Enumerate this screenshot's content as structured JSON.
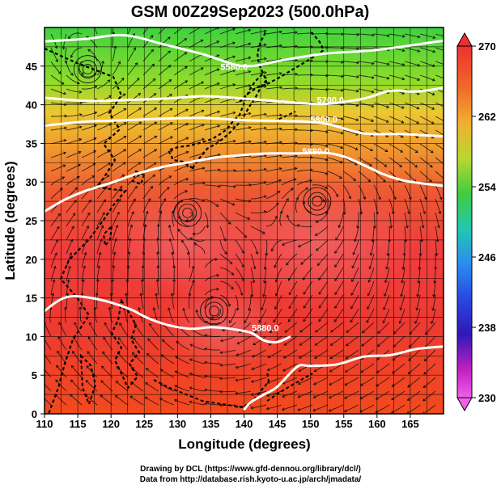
{
  "title": "GSM 00Z29Sep2023 (500.0hPa)",
  "map": {
    "xlabel": "Longitude (degrees)",
    "ylabel": "Latitude  (degrees)",
    "xlim": [
      110,
      170
    ],
    "ylim": [
      0,
      50
    ],
    "xticks": [
      "110",
      "115",
      "120",
      "125",
      "130",
      "135",
      "140",
      "145",
      "150",
      "155",
      "160",
      "165"
    ],
    "yticks": [
      "0",
      "5",
      "10",
      "15",
      "20",
      "25",
      "30",
      "35",
      "40",
      "45"
    ],
    "grid": true,
    "contours": [
      {
        "label": "5580.0",
        "label_lon": 138.5,
        "label_lat": 44.5,
        "points": [
          [
            110,
            48.2
          ],
          [
            116,
            48.5
          ],
          [
            122,
            49
          ],
          [
            128,
            47.8
          ],
          [
            134,
            46.5
          ],
          [
            140,
            45
          ],
          [
            146,
            45.8
          ],
          [
            152,
            46.6
          ],
          [
            160,
            47.1
          ],
          [
            170,
            48.3
          ]
        ]
      },
      {
        "label": "5700.0",
        "label_lon": 153,
        "label_lat": 40.2,
        "points": [
          [
            110,
            40.9
          ],
          [
            116,
            40.5
          ],
          [
            122,
            40.6
          ],
          [
            128,
            40.8
          ],
          [
            134,
            41.1
          ],
          [
            140,
            40.8
          ],
          [
            146,
            40.4
          ],
          [
            152,
            40.1
          ],
          [
            158,
            40.8
          ],
          [
            162,
            41.8
          ],
          [
            166,
            41.7
          ],
          [
            170,
            42.2
          ]
        ]
      },
      {
        "label": "5800.0",
        "label_lon": 152,
        "label_lat": 37.7,
        "points": [
          [
            110,
            37.3
          ],
          [
            116,
            37.8
          ],
          [
            122,
            38
          ],
          [
            128,
            38.2
          ],
          [
            134,
            38.3
          ],
          [
            140,
            38
          ],
          [
            146,
            37.9
          ],
          [
            152,
            37.6
          ],
          [
            158,
            36.3
          ],
          [
            164,
            36.2
          ],
          [
            170,
            35.9
          ]
        ]
      },
      {
        "label": "5880.0",
        "label_lon": 150.8,
        "label_lat": 33.6,
        "points": [
          [
            110,
            26.2
          ],
          [
            113,
            27.7
          ],
          [
            116,
            28.8
          ],
          [
            120,
            29.9
          ],
          [
            124,
            31.1
          ],
          [
            128,
            32
          ],
          [
            132,
            32.6
          ],
          [
            136,
            33.2
          ],
          [
            140,
            33.5
          ],
          [
            144,
            33.7
          ],
          [
            148,
            33.7
          ],
          [
            152,
            33.8
          ],
          [
            155,
            33.3
          ],
          [
            158,
            32.2
          ],
          [
            161,
            31
          ],
          [
            164,
            30.2
          ],
          [
            167,
            29.8
          ],
          [
            170,
            29.5
          ]
        ]
      },
      {
        "label": "5880.0",
        "label_lon": 143.2,
        "label_lat": 10.7,
        "points": [
          [
            110,
            13.3
          ],
          [
            112,
            14.6
          ],
          [
            114,
            15.2
          ],
          [
            117,
            15
          ],
          [
            120,
            14.4
          ],
          [
            123,
            13.5
          ],
          [
            125,
            12.6
          ],
          [
            127,
            11.9
          ],
          [
            129,
            11.4
          ],
          [
            132,
            11
          ],
          [
            135,
            11.2
          ],
          [
            138,
            11
          ],
          [
            141,
            10.5
          ],
          [
            143,
            9.5
          ],
          [
            145,
            9.3
          ],
          [
            147,
            10
          ]
        ]
      },
      {
        "label": "",
        "label_lon": null,
        "label_lat": null,
        "points": [
          [
            170,
            8.7
          ],
          [
            166,
            8.4
          ],
          [
            162,
            7.6
          ],
          [
            158,
            7.4
          ],
          [
            154,
            6.4
          ],
          [
            150,
            6.2
          ],
          [
            148,
            6.1
          ],
          [
            145,
            3.5
          ],
          [
            143,
            2.5
          ],
          [
            141,
            1.5
          ],
          [
            140,
            0.5
          ]
        ]
      }
    ],
    "vortices": [
      {
        "name": "low-45N",
        "lon": 116.5,
        "lat": 44.6
      },
      {
        "name": "high-26N",
        "lon": 131.5,
        "lat": 26
      },
      {
        "name": "high-28N",
        "lon": 151,
        "lat": 27.5
      },
      {
        "name": "high-13N",
        "lon": 135.5,
        "lat": 13.3
      }
    ]
  },
  "colorbar": {
    "ticks": [
      "270",
      "262",
      "254",
      "246",
      "238",
      "230"
    ]
  },
  "credits": {
    "line1": "Drawing by DCL (https://www.gfd-dennou.org/library/dcl/)",
    "line2": "Data from http://database.rish.kyoto-u.ac.jp/arch/jmadata/"
  }
}
